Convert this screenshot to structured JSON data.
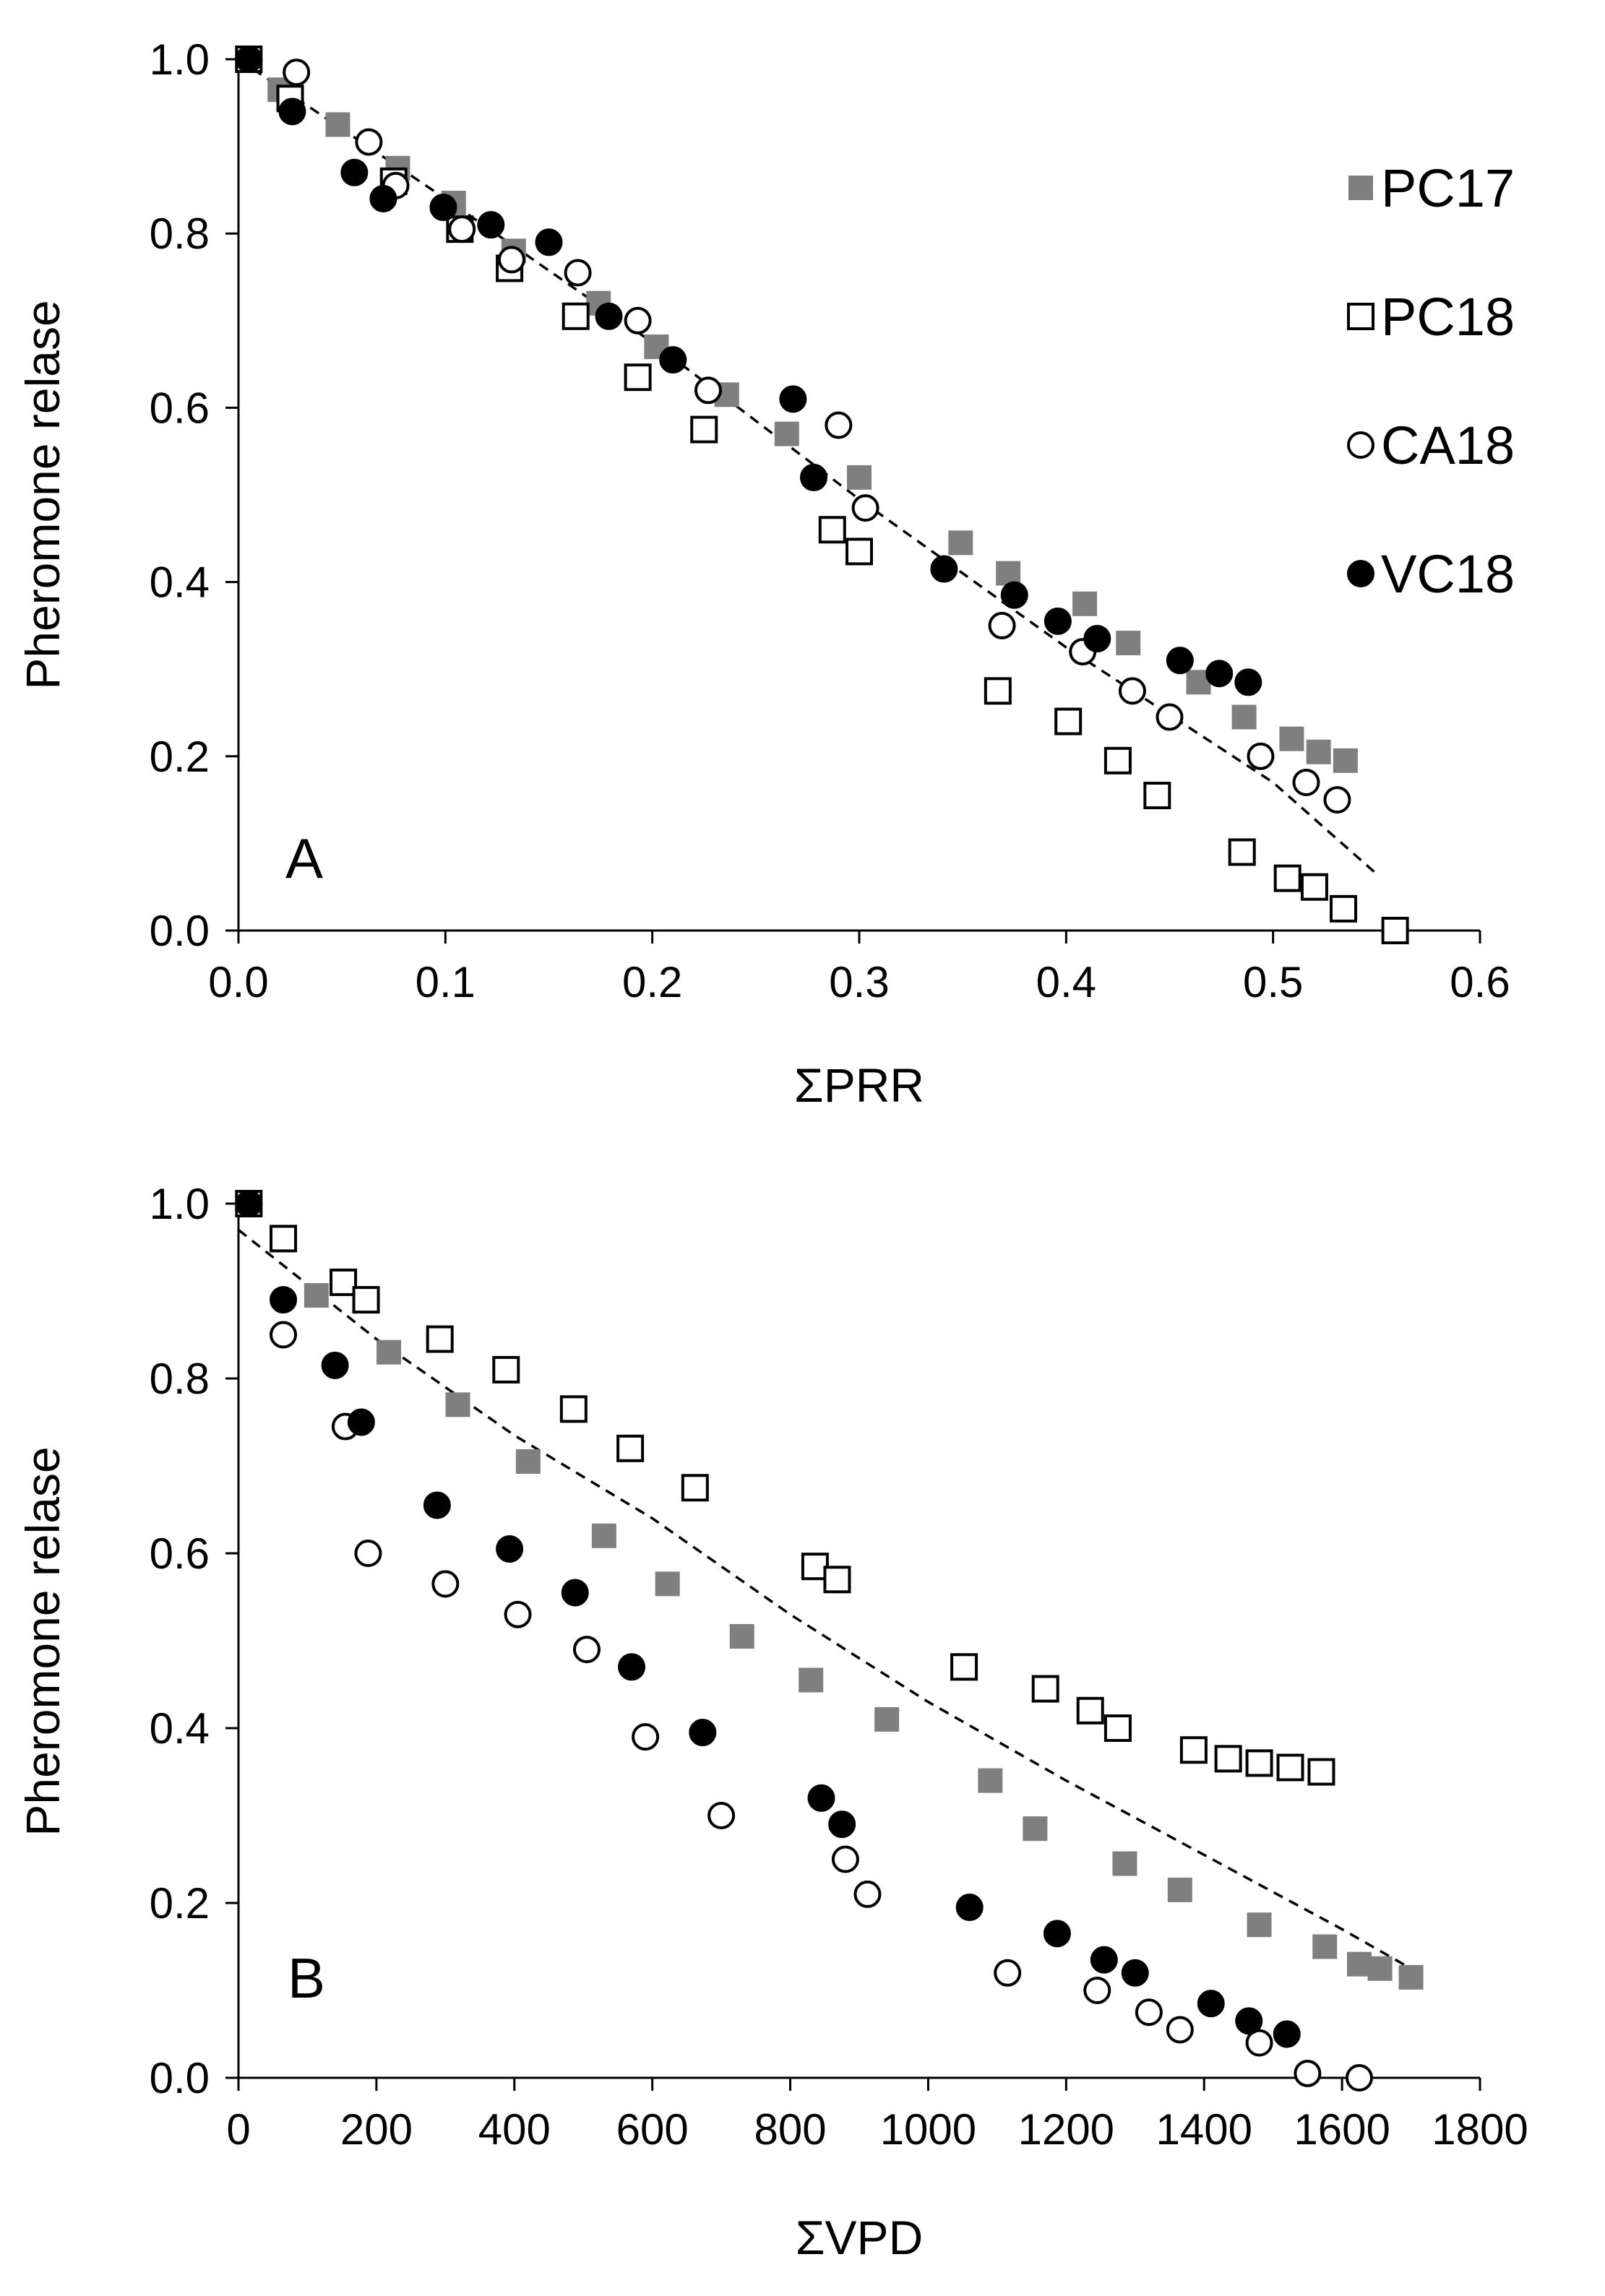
{
  "colors": {
    "gray": "#7f7f7f",
    "black": "#000000",
    "white": "#ffffff"
  },
  "legend": [
    {
      "name": "PC17",
      "marker": "square",
      "fill": "gray"
    },
    {
      "name": "PC18",
      "marker": "square",
      "fill": "white"
    },
    {
      "name": "CA18",
      "marker": "circle",
      "fill": "white"
    },
    {
      "name": "VC18",
      "marker": "circle",
      "fill": "black"
    }
  ],
  "chart_data": [
    {
      "type": "scatter",
      "panel": "A",
      "xlabel": "ΣPRR",
      "ylabel": "Pheromone relase",
      "xlim": [
        0,
        0.6
      ],
      "ylim": [
        0,
        1.0
      ],
      "xticks": [
        "0.0",
        "0.1",
        "0.2",
        "0.3",
        "0.4",
        "0.5",
        "0.6"
      ],
      "yticks": [
        "0.0",
        "0.2",
        "0.4",
        "0.6",
        "0.8",
        "1.0"
      ],
      "legend_position": "top-right",
      "series": [
        {
          "name": "PC17",
          "points": [
            [
              0.005,
              1.0
            ],
            [
              0.02,
              0.965
            ],
            [
              0.048,
              0.925
            ],
            [
              0.077,
              0.875
            ],
            [
              0.104,
              0.835
            ],
            [
              0.133,
              0.78
            ],
            [
              0.174,
              0.72
            ],
            [
              0.202,
              0.67
            ],
            [
              0.236,
              0.615
            ],
            [
              0.265,
              0.57
            ],
            [
              0.3,
              0.52
            ],
            [
              0.349,
              0.445
            ],
            [
              0.372,
              0.41
            ],
            [
              0.409,
              0.375
            ],
            [
              0.43,
              0.33
            ],
            [
              0.464,
              0.285
            ],
            [
              0.486,
              0.245
            ],
            [
              0.509,
              0.22
            ],
            [
              0.522,
              0.205
            ],
            [
              0.535,
              0.195
            ]
          ]
        },
        {
          "name": "PC18",
          "points": [
            [
              0.005,
              1.0
            ],
            [
              0.025,
              0.955
            ],
            [
              0.075,
              0.86
            ],
            [
              0.107,
              0.805
            ],
            [
              0.131,
              0.76
            ],
            [
              0.163,
              0.705
            ],
            [
              0.193,
              0.635
            ],
            [
              0.225,
              0.575
            ],
            [
              0.287,
              0.46
            ],
            [
              0.3,
              0.435
            ],
            [
              0.367,
              0.275
            ],
            [
              0.401,
              0.24
            ],
            [
              0.425,
              0.195
            ],
            [
              0.444,
              0.155
            ],
            [
              0.485,
              0.09
            ],
            [
              0.507,
              0.06
            ],
            [
              0.52,
              0.05
            ],
            [
              0.534,
              0.025
            ],
            [
              0.559,
              0.0
            ]
          ]
        },
        {
          "name": "CA18",
          "points": [
            [
              0.028,
              0.985
            ],
            [
              0.063,
              0.905
            ],
            [
              0.076,
              0.855
            ],
            [
              0.108,
              0.805
            ],
            [
              0.132,
              0.77
            ],
            [
              0.164,
              0.755
            ],
            [
              0.193,
              0.7
            ],
            [
              0.227,
              0.62
            ],
            [
              0.29,
              0.58
            ],
            [
              0.303,
              0.485
            ],
            [
              0.369,
              0.35
            ],
            [
              0.408,
              0.32
            ],
            [
              0.432,
              0.275
            ],
            [
              0.45,
              0.245
            ],
            [
              0.494,
              0.2
            ],
            [
              0.516,
              0.17
            ],
            [
              0.531,
              0.15
            ]
          ]
        },
        {
          "name": "VC18",
          "points": [
            [
              0.005,
              1.0
            ],
            [
              0.026,
              0.94
            ],
            [
              0.056,
              0.87
            ],
            [
              0.07,
              0.84
            ],
            [
              0.099,
              0.83
            ],
            [
              0.122,
              0.81
            ],
            [
              0.15,
              0.79
            ],
            [
              0.179,
              0.705
            ],
            [
              0.21,
              0.655
            ],
            [
              0.268,
              0.61
            ],
            [
              0.278,
              0.52
            ],
            [
              0.341,
              0.415
            ],
            [
              0.375,
              0.385
            ],
            [
              0.396,
              0.355
            ],
            [
              0.415,
              0.335
            ],
            [
              0.455,
              0.31
            ],
            [
              0.474,
              0.295
            ],
            [
              0.488,
              0.285
            ]
          ]
        }
      ],
      "fit_line": {
        "style": "dashed",
        "points": [
          [
            0,
            1.0
          ],
          [
            0.1,
            0.84
          ],
          [
            0.2,
            0.675
          ],
          [
            0.3,
            0.495
          ],
          [
            0.4,
            0.325
          ],
          [
            0.5,
            0.17
          ],
          [
            0.55,
            0.065
          ]
        ]
      }
    },
    {
      "type": "scatter",
      "panel": "B",
      "xlabel": "ΣVPD",
      "ylabel": "Pheromone relase",
      "xlim": [
        0,
        1800
      ],
      "ylim": [
        0,
        1.0
      ],
      "xticks": [
        "0",
        "200",
        "400",
        "600",
        "800",
        "1000",
        "1200",
        "1400",
        "1600",
        "1800"
      ],
      "yticks": [
        "0.0",
        "0.2",
        "0.4",
        "0.6",
        "0.8",
        "1.0"
      ],
      "series": [
        {
          "name": "PC17",
          "points": [
            [
              15,
              1.0
            ],
            [
              113,
              0.895
            ],
            [
              218,
              0.83
            ],
            [
              318,
              0.77
            ],
            [
              420,
              0.705
            ],
            [
              530,
              0.62
            ],
            [
              622,
              0.565
            ],
            [
              730,
              0.505
            ],
            [
              830,
              0.455
            ],
            [
              940,
              0.41
            ],
            [
              1090,
              0.34
            ],
            [
              1155,
              0.285
            ],
            [
              1285,
              0.245
            ],
            [
              1365,
              0.215
            ],
            [
              1480,
              0.175
            ],
            [
              1575,
              0.15
            ],
            [
              1625,
              0.13
            ],
            [
              1655,
              0.125
            ],
            [
              1700,
              0.115
            ]
          ]
        },
        {
          "name": "PC18",
          "points": [
            [
              15,
              1.0
            ],
            [
              65,
              0.96
            ],
            [
              152,
              0.91
            ],
            [
              185,
              0.89
            ],
            [
              292,
              0.845
            ],
            [
              388,
              0.81
            ],
            [
              486,
              0.765
            ],
            [
              568,
              0.72
            ],
            [
              662,
              0.675
            ],
            [
              836,
              0.585
            ],
            [
              868,
              0.57
            ],
            [
              1052,
              0.47
            ],
            [
              1170,
              0.445
            ],
            [
              1235,
              0.42
            ],
            [
              1275,
              0.4
            ],
            [
              1385,
              0.375
            ],
            [
              1435,
              0.365
            ],
            [
              1480,
              0.36
            ],
            [
              1525,
              0.355
            ],
            [
              1570,
              0.35
            ]
          ]
        },
        {
          "name": "CA18",
          "points": [
            [
              65,
              0.85
            ],
            [
              155,
              0.745
            ],
            [
              188,
              0.6
            ],
            [
              300,
              0.565
            ],
            [
              405,
              0.53
            ],
            [
              505,
              0.49
            ],
            [
              590,
              0.39
            ],
            [
              700,
              0.3
            ],
            [
              880,
              0.25
            ],
            [
              912,
              0.21
            ],
            [
              1115,
              0.12
            ],
            [
              1245,
              0.1
            ],
            [
              1320,
              0.075
            ],
            [
              1365,
              0.055
            ],
            [
              1480,
              0.04
            ],
            [
              1550,
              0.005
            ],
            [
              1625,
              0.0
            ]
          ]
        },
        {
          "name": "VC18",
          "points": [
            [
              15,
              1.0
            ],
            [
              65,
              0.89
            ],
            [
              140,
              0.815
            ],
            [
              178,
              0.75
            ],
            [
              288,
              0.655
            ],
            [
              393,
              0.605
            ],
            [
              488,
              0.555
            ],
            [
              570,
              0.47
            ],
            [
              673,
              0.395
            ],
            [
              845,
              0.32
            ],
            [
              875,
              0.29
            ],
            [
              1060,
              0.195
            ],
            [
              1187,
              0.165
            ],
            [
              1255,
              0.135
            ],
            [
              1300,
              0.12
            ],
            [
              1410,
              0.085
            ],
            [
              1465,
              0.065
            ],
            [
              1520,
              0.05
            ]
          ]
        }
      ],
      "fit_line": {
        "style": "dashed",
        "points": [
          [
            0,
            0.97
          ],
          [
            200,
            0.845
          ],
          [
            400,
            0.735
          ],
          [
            600,
            0.64
          ],
          [
            800,
            0.53
          ],
          [
            1000,
            0.43
          ],
          [
            1200,
            0.34
          ],
          [
            1400,
            0.255
          ],
          [
            1600,
            0.17
          ],
          [
            1700,
            0.125
          ]
        ]
      }
    }
  ]
}
